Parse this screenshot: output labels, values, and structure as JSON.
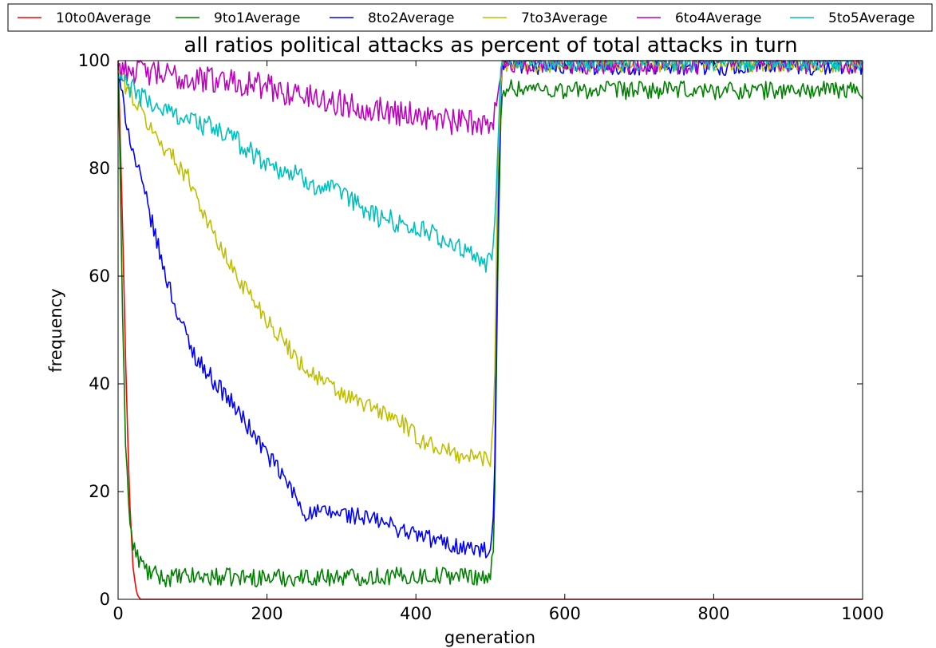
{
  "chart_data": {
    "type": "line",
    "title": "all ratios political attacks as percent of total attacks in turn",
    "xlabel": "generation",
    "ylabel": "frequency",
    "xlim": [
      0,
      1000
    ],
    "ylim": [
      0,
      100
    ],
    "xticks": [
      "0",
      "200",
      "400",
      "600",
      "800",
      "1000"
    ],
    "yticks": [
      "0",
      "20",
      "40",
      "60",
      "80",
      "100"
    ],
    "grid": false,
    "legend_position": "top",
    "series": [
      {
        "name": "10to0Average",
        "color": "#ff0000",
        "noise": 0,
        "x": [
          0,
          5,
          10,
          15,
          20,
          25,
          30,
          40,
          60,
          100,
          500,
          1000
        ],
        "y": [
          100,
          75,
          45,
          20,
          6,
          1,
          0,
          0,
          0,
          0,
          0,
          0
        ]
      },
      {
        "name": "9to1Average",
        "color": "#008000",
        "noise": 1.0,
        "x": [
          0,
          5,
          10,
          15,
          20,
          25,
          30,
          40,
          60,
          100,
          200,
          300,
          400,
          450,
          500,
          505,
          510,
          515,
          520,
          600,
          800,
          1000
        ],
        "y": [
          100,
          60,
          30,
          15,
          10,
          8,
          7,
          5,
          4,
          4.2,
          4,
          4.2,
          4.3,
          4.5,
          4.2,
          10,
          60,
          95,
          95,
          94.5,
          94.5,
          94.5
        ]
      },
      {
        "name": "8to2Average",
        "color": "#0000ff",
        "noise": 1.0,
        "x": [
          0,
          10,
          20,
          40,
          60,
          80,
          100,
          120,
          150,
          170,
          200,
          230,
          250,
          300,
          350,
          400,
          450,
          490,
          500,
          505,
          510,
          515,
          520,
          600,
          800,
          1000
        ],
        "y": [
          97,
          90,
          83,
          73,
          62,
          53,
          46,
          42,
          37,
          33,
          27,
          21,
          16,
          16,
          14.5,
          12,
          10,
          9,
          8.5,
          15,
          70,
          98,
          99,
          99,
          99,
          99
        ]
      },
      {
        "name": "7to3Average",
        "color": "#bfbf00",
        "noise": 1.0,
        "x": [
          0,
          20,
          50,
          80,
          100,
          120,
          150,
          200,
          250,
          300,
          350,
          380,
          400,
          450,
          500,
          505,
          510,
          515,
          520,
          600,
          800,
          1000
        ],
        "y": [
          98,
          93,
          86,
          81,
          77,
          70,
          62,
          52,
          43,
          38,
          35,
          33,
          30,
          27,
          26,
          35,
          80,
          99,
          99.5,
          99.5,
          99.5,
          99.5
        ]
      },
      {
        "name": "6to4Average",
        "color": "#bf00bf",
        "noise": 1.5,
        "x": [
          0,
          50,
          100,
          150,
          200,
          250,
          300,
          350,
          400,
          450,
          500,
          505,
          510,
          515,
          520,
          600,
          800,
          1000
        ],
        "y": [
          99,
          97.5,
          96.5,
          96.5,
          95,
          93.5,
          92,
          91,
          90,
          88.5,
          88.5,
          90,
          95,
          99.5,
          100,
          100,
          100,
          100
        ]
      },
      {
        "name": "5to5Average",
        "color": "#00bfbf",
        "noise": 1.2,
        "x": [
          0,
          20,
          50,
          100,
          150,
          200,
          250,
          300,
          350,
          400,
          450,
          480,
          500,
          505,
          510,
          515,
          520,
          600,
          800,
          1000
        ],
        "y": [
          97,
          94.5,
          91.5,
          89,
          86,
          81,
          78,
          75,
          71,
          69,
          66,
          63,
          62.5,
          67,
          85,
          99.5,
          100,
          100,
          100,
          100
        ]
      }
    ]
  }
}
